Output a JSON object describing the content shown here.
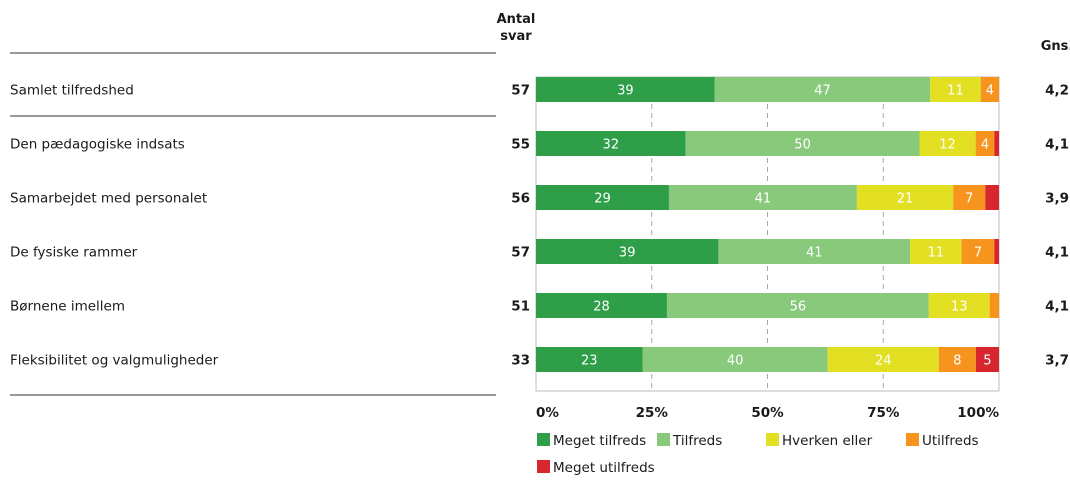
{
  "chart_data": {
    "type": "bar",
    "orientation": "horizontal",
    "stacked": true,
    "percent": true,
    "header_n": [
      "Antal",
      "svar"
    ],
    "header_avg": "Gns.",
    "categories": [
      "Samlet tilfredshed",
      "Den pædagogiske indsats",
      "Samarbejdet med personalet",
      "De fysiske rammer",
      "Børnene imellem",
      "Fleksibilitet og valgmuligheder"
    ],
    "n": [
      57,
      55,
      56,
      57,
      51,
      33
    ],
    "avg": [
      "4,2",
      "4,1",
      "3,9",
      "4,1",
      "4,1",
      "3,7"
    ],
    "series": [
      {
        "name": "Meget tilfreds",
        "color": "#2e9e48",
        "values": [
          39,
          32,
          29,
          39,
          28,
          23
        ]
      },
      {
        "name": "Tilfreds",
        "color": "#88c97c",
        "values": [
          47,
          50,
          41,
          41,
          56,
          40
        ]
      },
      {
        "name": "Hverken eller",
        "color": "#e3e023",
        "values": [
          11,
          12,
          21,
          11,
          13,
          24
        ]
      },
      {
        "name": "Utilfreds",
        "color": "#f7941e",
        "values": [
          4,
          4,
          7,
          7,
          2,
          8
        ]
      },
      {
        "name": "Meget utilfreds",
        "color": "#d7262e",
        "values": [
          0,
          1,
          3,
          1,
          0,
          5
        ]
      }
    ],
    "xticks": [
      "0%",
      "25%",
      "50%",
      "75%",
      "100%"
    ],
    "xlim": [
      0,
      100
    ],
    "grid": true,
    "legend_position": "bottom"
  }
}
